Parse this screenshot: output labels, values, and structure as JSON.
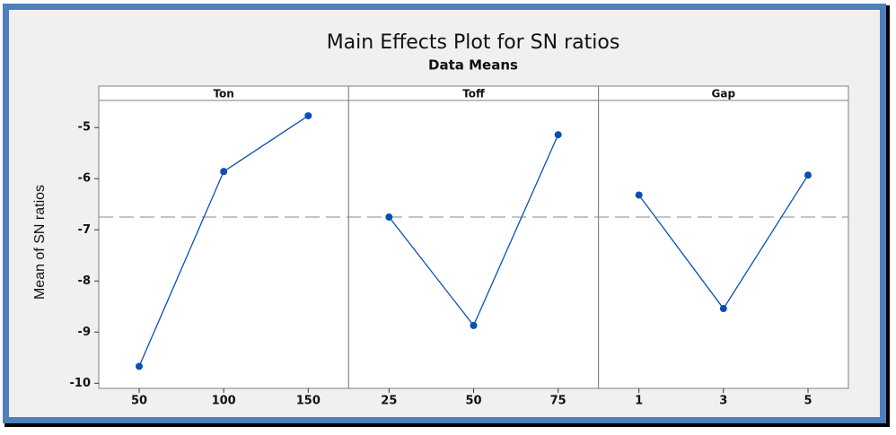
{
  "chart_data": {
    "type": "line",
    "title": "Main Effects Plot for SN ratios",
    "subtitle": "Data Means",
    "ylabel": "Mean of SN ratios",
    "ylim": [
      -10.1,
      -4.47
    ],
    "yticks": [
      -10,
      -9,
      -8,
      -7,
      -6,
      -5
    ],
    "reference_line": -6.75,
    "color": "#0b4fb3",
    "panels": [
      {
        "name": "Ton",
        "categories": [
          "50",
          "100",
          "150"
        ],
        "values": [
          -9.67,
          -5.86,
          -4.77
        ]
      },
      {
        "name": "Toff",
        "categories": [
          "25",
          "50",
          "75"
        ],
        "values": [
          -6.75,
          -8.87,
          -5.14
        ]
      },
      {
        "name": "Gap",
        "categories": [
          "1",
          "3",
          "5"
        ],
        "values": [
          -6.32,
          -8.54,
          -5.93
        ]
      }
    ]
  }
}
